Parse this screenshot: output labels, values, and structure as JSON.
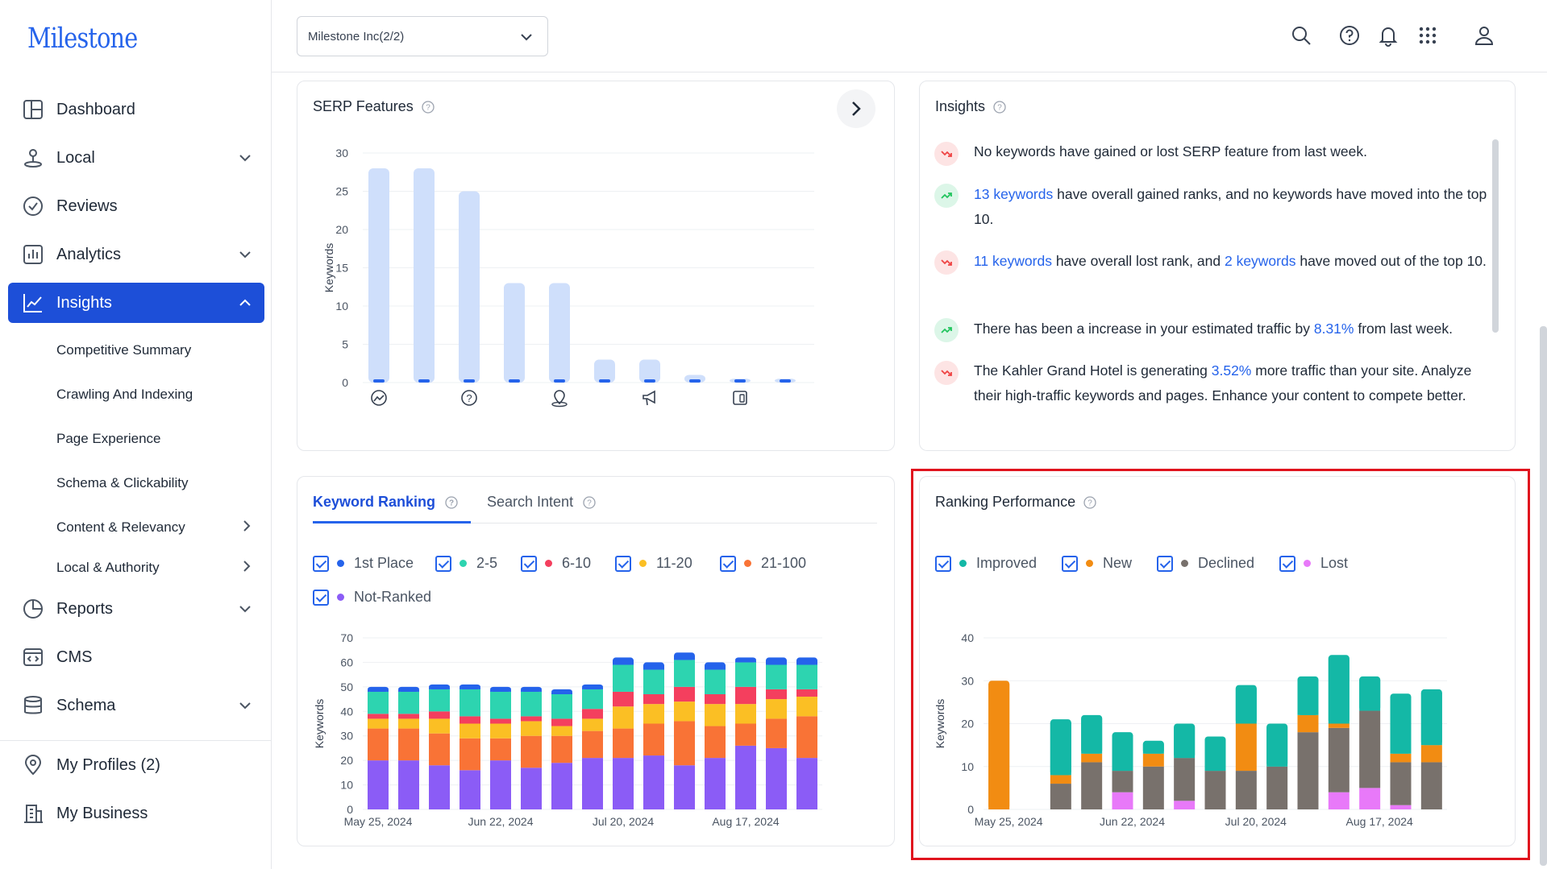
{
  "app": {
    "logo": "Milestone"
  },
  "sidebar": {
    "items": [
      {
        "label": "Dashboard",
        "icon": "dashboard-icon"
      },
      {
        "label": "Local",
        "icon": "map-pin-icon"
      },
      {
        "label": "Reviews",
        "icon": "badge-check-icon"
      },
      {
        "label": "Analytics",
        "icon": "bar-chart-icon"
      },
      {
        "label": "Insights",
        "icon": "line-chart-icon"
      },
      {
        "label": "Reports",
        "icon": "pie-chart-icon"
      },
      {
        "label": "CMS",
        "icon": "code-window-icon"
      },
      {
        "label": "Schema",
        "icon": "database-icon"
      },
      {
        "label": "My Profiles (2)",
        "icon": "location-icon"
      },
      {
        "label": "My Business",
        "icon": "building-icon"
      }
    ],
    "insights_sub": [
      "Competitive Summary",
      "Crawling And Indexing",
      "Page Experience",
      "Schema & Clickability",
      "Content & Relevancy",
      "Local & Authority"
    ]
  },
  "header": {
    "org_select": "Milestone Inc(2/2)"
  },
  "serp": {
    "title": "SERP Features",
    "ylabel": "Keywords",
    "icons": [
      "image-icon",
      "question-icon",
      "local-pack-icon",
      "ads-icon",
      "device-icon"
    ]
  },
  "insights": {
    "title": "Insights",
    "rows": [
      {
        "trend": "down",
        "parts": [
          "No keywords have gained or lost SERP feature from last week."
        ]
      },
      {
        "trend": "up",
        "link1": "13 keywords",
        "text1": " have overall gained ranks, and no keywords have moved into the top 10."
      },
      {
        "trend": "down",
        "link1": "11 keywords",
        "text1": " have overall lost rank, and ",
        "link2": "2 keywords",
        "text2": " have moved out of the top 10."
      },
      {
        "trend": "up",
        "text0": "There has been a increase in your estimated traffic by ",
        "link1": "8.31%",
        "text1": " from last week."
      },
      {
        "trend": "down",
        "text0": "The Kahler Grand Hotel is generating ",
        "link1": "3.52%",
        "text1": " more traffic than your site. Analyze their high-traffic keywords and pages. Enhance your content to compete better."
      }
    ]
  },
  "keyword_ranking": {
    "tabs": [
      "Keyword Ranking",
      "Search Intent"
    ],
    "legend": [
      "1st Place",
      "2-5",
      "6-10",
      "11-20",
      "21-100",
      "Not-Ranked"
    ],
    "ylabel": "Keywords"
  },
  "ranking_performance": {
    "title": "Ranking Performance",
    "legend": [
      "Improved",
      "New",
      "Declined",
      "Lost"
    ],
    "ylabel": "Keywords"
  },
  "colors": {
    "accent": "#1d4fd8",
    "first": "#2563eb",
    "r2_5": "#2dd4b0",
    "r6_10": "#f43f5e",
    "r11_20": "#fbbf24",
    "r21_100": "#f97336",
    "notranked": "#8b5cf6",
    "improved": "#14b8a6",
    "new": "#f28c12",
    "declined": "#78716c",
    "lost": "#e879f9",
    "serp_bar": "#cfdffb"
  },
  "chart_data": [
    {
      "type": "bar",
      "name": "serp_features",
      "ylabel": "Keywords",
      "ylim": [
        0,
        30
      ],
      "yticks": [
        0,
        5,
        10,
        15,
        20,
        25,
        30
      ],
      "values": [
        28,
        28,
        25,
        13,
        13,
        3,
        3,
        1,
        0.5,
        0.5
      ]
    },
    {
      "type": "bar",
      "name": "keyword_ranking",
      "stacked": true,
      "ylabel": "Keywords",
      "ylim": [
        0,
        70
      ],
      "yticks": [
        0,
        10,
        20,
        30,
        40,
        50,
        60,
        70
      ],
      "xticks": [
        "May 25, 2024",
        "Jun 22, 2024",
        "Jul 20, 2024",
        "Aug 17, 2024"
      ],
      "series": [
        {
          "name": "Not-Ranked",
          "values": [
            20,
            20,
            18,
            16,
            20,
            17,
            19,
            21,
            21,
            22,
            18,
            21,
            26,
            25,
            21
          ]
        },
        {
          "name": "21-100",
          "values": [
            13,
            13,
            13,
            13,
            9,
            13,
            11,
            11,
            12,
            13,
            18,
            13,
            9,
            12,
            17
          ]
        },
        {
          "name": "11-20",
          "values": [
            4,
            4,
            6,
            6,
            6,
            6,
            4,
            5,
            9,
            8,
            8,
            9,
            8,
            8,
            8
          ]
        },
        {
          "name": "6-10",
          "values": [
            2,
            2,
            3,
            3,
            2,
            2,
            3,
            4,
            6,
            4,
            6,
            4,
            7,
            4,
            3
          ]
        },
        {
          "name": "2-5",
          "values": [
            9,
            9,
            9,
            11,
            11,
            10,
            10,
            8,
            11,
            10,
            11,
            10,
            10,
            10,
            10
          ]
        },
        {
          "name": "1st Place",
          "values": [
            2,
            2,
            2,
            2,
            2,
            2,
            2,
            2,
            3,
            3,
            3,
            3,
            2,
            3,
            3
          ]
        }
      ]
    },
    {
      "type": "bar",
      "name": "ranking_performance",
      "stacked": true,
      "ylabel": "Keywords",
      "ylim": [
        0,
        40
      ],
      "yticks": [
        0,
        10,
        20,
        30,
        40
      ],
      "xticks": [
        "May 25, 2024",
        "Jun 22, 2024",
        "Jul 20, 2024",
        "Aug 17, 2024"
      ],
      "series": [
        {
          "name": "Lost",
          "values": [
            0,
            0,
            0,
            0,
            4,
            0,
            2,
            0,
            0,
            0,
            0,
            4,
            5,
            1,
            0
          ]
        },
        {
          "name": "Declined",
          "values": [
            0,
            0,
            6,
            11,
            5,
            10,
            10,
            9,
            9,
            10,
            18,
            15,
            18,
            10,
            11
          ]
        },
        {
          "name": "New",
          "values": [
            30,
            0,
            2,
            2,
            0,
            3,
            0,
            0,
            11,
            0,
            4,
            1,
            0,
            2,
            4
          ]
        },
        {
          "name": "Improved",
          "values": [
            0,
            0,
            13,
            9,
            9,
            3,
            8,
            8,
            9,
            10,
            9,
            16,
            8,
            14,
            13
          ]
        }
      ]
    }
  ]
}
